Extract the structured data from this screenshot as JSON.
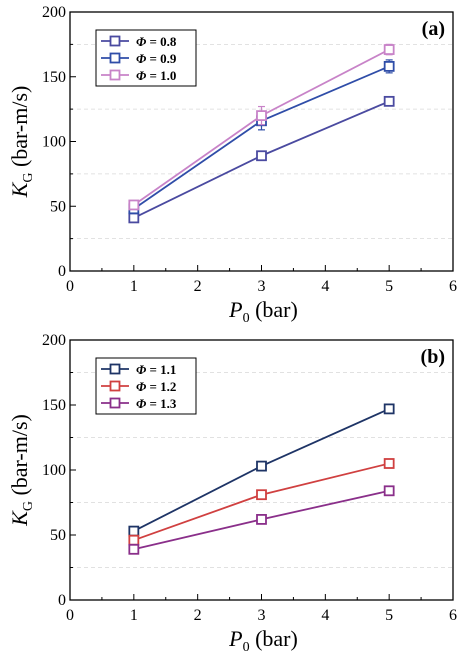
{
  "chart_data": [
    {
      "type": "line",
      "panel_label": "(a)",
      "xlabel": "P",
      "xlabel_sub": "0",
      "xlabel_unit": " (bar)",
      "ylabel": "K",
      "ylabel_sub": "G",
      "ylabel_unit": " (bar-m/s)",
      "xlim": [
        0,
        6
      ],
      "ylim": [
        0,
        200
      ],
      "xticks": [
        0,
        1,
        2,
        3,
        4,
        5,
        6
      ],
      "yticks": [
        0,
        50,
        100,
        150,
        200
      ],
      "legend_position": "top-left",
      "series": [
        {
          "name": "Φ = 0.8",
          "color": "#4a4aa0",
          "x": [
            1,
            3,
            5
          ],
          "y": [
            41,
            89,
            131
          ],
          "err": [
            2,
            3,
            2
          ]
        },
        {
          "name": "Φ = 0.9",
          "color": "#2f4da8",
          "x": [
            1,
            3,
            5
          ],
          "y": [
            48,
            116,
            158
          ],
          "err": [
            3,
            7,
            5
          ]
        },
        {
          "name": "Φ = 1.0",
          "color": "#c883c8",
          "x": [
            1,
            3,
            5
          ],
          "y": [
            51,
            120,
            171
          ],
          "err": [
            3,
            7,
            4
          ]
        }
      ]
    },
    {
      "type": "line",
      "panel_label": "(b)",
      "xlabel": "P",
      "xlabel_sub": "0",
      "xlabel_unit": " (bar)",
      "ylabel": "K",
      "ylabel_sub": "G",
      "ylabel_unit": " (bar-m/s)",
      "xlim": [
        0,
        6
      ],
      "ylim": [
        0,
        200
      ],
      "xticks": [
        0,
        1,
        2,
        3,
        4,
        5,
        6
      ],
      "yticks": [
        0,
        50,
        100,
        150,
        200
      ],
      "legend_position": "top-left",
      "series": [
        {
          "name": "Φ = 1.1",
          "color": "#1e3466",
          "x": [
            1,
            3,
            5
          ],
          "y": [
            53,
            103,
            147
          ],
          "err": [
            1,
            2,
            2
          ]
        },
        {
          "name": "Φ = 1.2",
          "color": "#d04040",
          "x": [
            1,
            3,
            5
          ],
          "y": [
            46,
            81,
            105
          ],
          "err": [
            2,
            2,
            2
          ]
        },
        {
          "name": "Φ = 1.3",
          "color": "#8a2f8a",
          "x": [
            1,
            3,
            5
          ],
          "y": [
            39,
            62,
            84
          ],
          "err": [
            1,
            2,
            2
          ]
        }
      ]
    }
  ]
}
